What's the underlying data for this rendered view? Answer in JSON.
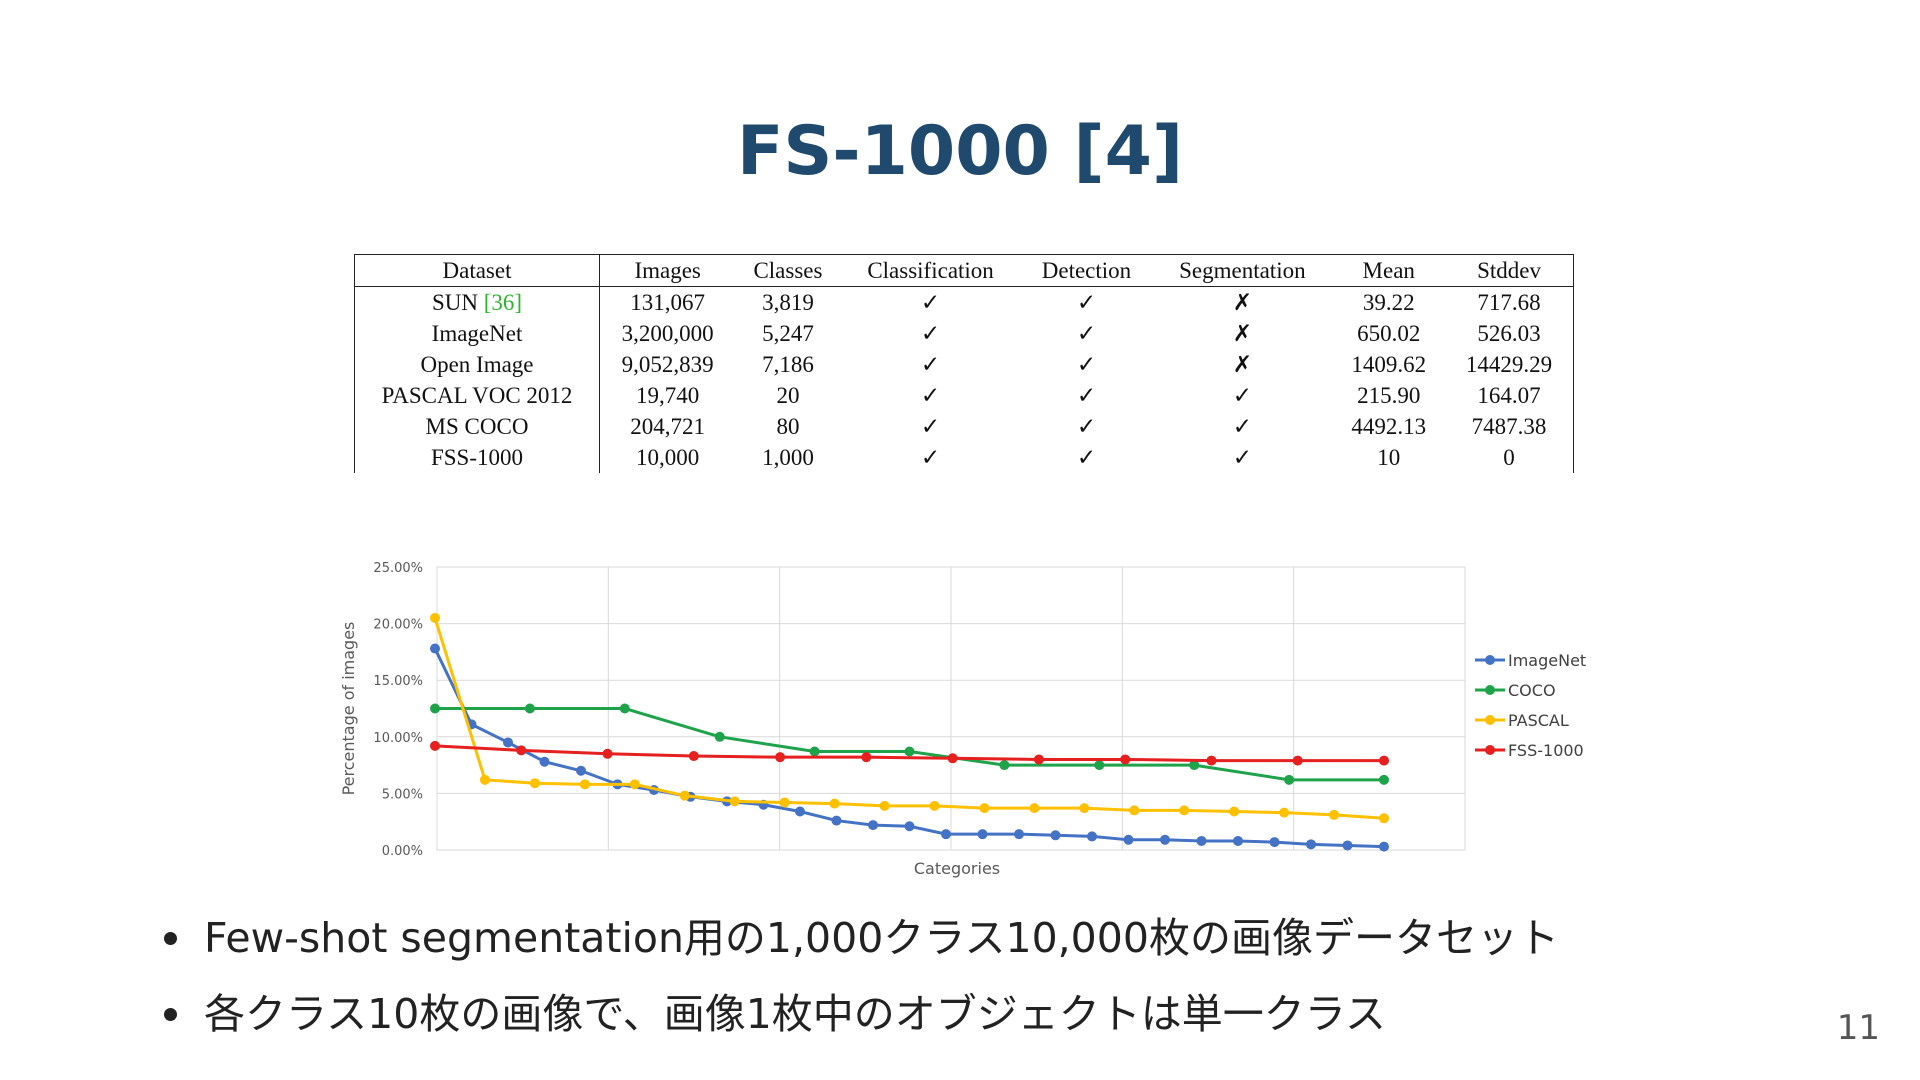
{
  "title": "FS-1000 [4]",
  "table": {
    "headers": [
      "Dataset",
      "Images",
      "Classes",
      "Classification",
      "Detection",
      "Segmentation",
      "Mean",
      "Stddev"
    ],
    "rows": [
      {
        "dataset": "SUN ",
        "ref": "[36]",
        "images": "131,067",
        "classes": "3,819",
        "classification": "✓",
        "detection": "✓",
        "segmentation": "✗",
        "mean": "39.22",
        "stddev": "717.68"
      },
      {
        "dataset": "ImageNet",
        "ref": "",
        "images": "3,200,000",
        "classes": "5,247",
        "classification": "✓",
        "detection": "✓",
        "segmentation": "✗",
        "mean": "650.02",
        "stddev": "526.03"
      },
      {
        "dataset": "Open Image",
        "ref": "",
        "images": "9,052,839",
        "classes": "7,186",
        "classification": "✓",
        "detection": "✓",
        "segmentation": "✗",
        "mean": "1409.62",
        "stddev": "14429.29"
      },
      {
        "dataset": "PASCAL VOC 2012",
        "ref": "",
        "images": "19,740",
        "classes": "20",
        "classification": "✓",
        "detection": "✓",
        "segmentation": "✓",
        "mean": "215.90",
        "stddev": "164.07"
      },
      {
        "dataset": "MS COCO",
        "ref": "",
        "images": "204,721",
        "classes": "80",
        "classification": "✓",
        "detection": "✓",
        "segmentation": "✓",
        "mean": "4492.13",
        "stddev": "7487.38"
      },
      {
        "dataset": "FSS-1000",
        "ref": "",
        "images": "10,000",
        "classes": "1,000",
        "classification": "✓",
        "detection": "✓",
        "segmentation": "✓",
        "mean": "10",
        "stddev": "0"
      }
    ]
  },
  "chart_data": {
    "type": "line",
    "xlabel": "Categories",
    "ylabel": "Percentage of images",
    "ylim": [
      0,
      25
    ],
    "yticks": [
      "0.00%",
      "5.00%",
      "10.00%",
      "15.00%",
      "20.00%",
      "25.00%"
    ],
    "grid": true,
    "legend": "right",
    "series": [
      {
        "name": "ImageNet",
        "color": "#4472c4",
        "values": [
          17.8,
          11.1,
          9.5,
          7.8,
          7.0,
          5.8,
          5.3,
          4.7,
          4.3,
          4.0,
          3.4,
          2.6,
          2.2,
          2.1,
          1.4,
          1.4,
          1.4,
          1.3,
          1.2,
          0.9,
          0.9,
          0.8,
          0.8,
          0.7,
          0.5,
          0.4,
          0.3
        ]
      },
      {
        "name": "COCO",
        "color": "#1ea34a",
        "values": [
          12.5,
          12.5,
          12.5,
          10.0,
          8.7,
          8.7,
          7.5,
          7.5,
          7.5,
          6.2,
          6.2
        ]
      },
      {
        "name": "PASCAL",
        "color": "#ffc000",
        "values": [
          20.5,
          6.2,
          5.9,
          5.8,
          5.8,
          4.8,
          4.3,
          4.2,
          4.1,
          3.9,
          3.9,
          3.7,
          3.7,
          3.7,
          3.5,
          3.5,
          3.4,
          3.3,
          3.1,
          2.8
        ]
      },
      {
        "name": "FSS-1000",
        "color": "#e61f1f",
        "values": [
          9.2,
          8.8,
          8.5,
          8.3,
          8.2,
          8.2,
          8.1,
          8.0,
          8.0,
          7.9,
          7.9,
          7.9
        ]
      }
    ]
  },
  "bullets": [
    "Few-shot segmentation用の1,000クラス10,000枚の画像データセット",
    "各クラス10枚の画像で、画像1枚中のオブジェクトは単一クラス"
  ],
  "page_number": "11"
}
